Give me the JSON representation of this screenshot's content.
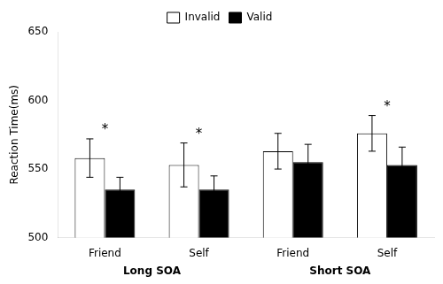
{
  "chart_data": {
    "type": "bar",
    "title": "",
    "ylabel": "Reaction Time(ms)",
    "categories": [
      "Friend",
      "Self",
      "Friend",
      "Self"
    ],
    "series": [
      {
        "name": "Invalid",
        "color": "#ffffff",
        "values": [
          558,
          553,
          563,
          576
        ],
        "errors": [
          14,
          16,
          13,
          13
        ]
      },
      {
        "name": "Valid",
        "color": "#000000",
        "values": [
          535,
          535,
          555,
          553
        ],
        "errors": [
          9,
          10,
          13,
          13
        ]
      }
    ],
    "ylim": [
      500,
      650
    ],
    "yticks": [
      500,
      550,
      600,
      650
    ],
    "grid": false,
    "legend": "top",
    "annotations": [
      {
        "text": "*",
        "category": 0
      },
      {
        "text": "*",
        "category": 1
      },
      {
        "text": "*",
        "category": 3
      }
    ],
    "group_labels": [
      {
        "text": "Long SOA",
        "categories": [
          0,
          1
        ]
      },
      {
        "text": "Short SOA",
        "categories": [
          2,
          3
        ]
      }
    ]
  }
}
